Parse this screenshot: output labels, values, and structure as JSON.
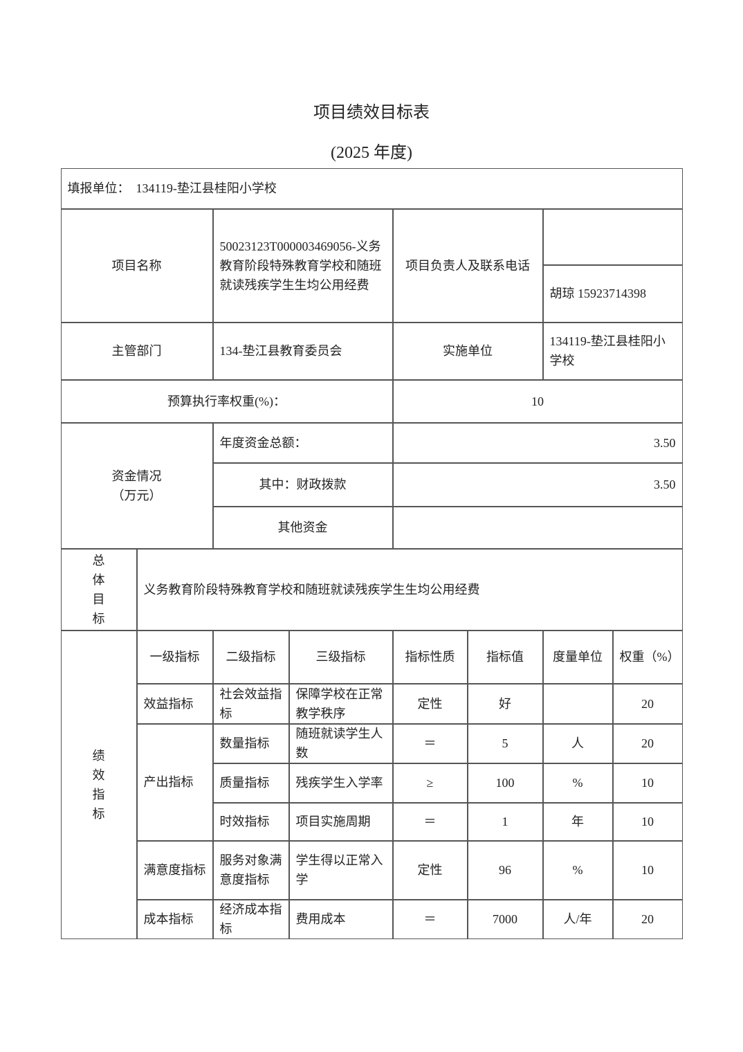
{
  "title": "项目绩效目标表",
  "subtitle": "(2025 年度)",
  "reporting_unit": "填报单位：　134119-垫江县桂阳小学校",
  "project_name_label": "项目名称",
  "project_name": "50023123T000003469056-义务教育阶段特殊教育学校和随班就读残疾学生生均公用经费",
  "contact_label": "项目负责人及联系电话",
  "contact_top": "",
  "contact": "胡琼 15923714398",
  "dept_label": "主管部门",
  "dept": "134-垫江县教育委员会",
  "impl_label": "实施单位",
  "impl": "134119-垫江县桂阳小学校",
  "budget_rate_label": "预算执行率权重(%)：",
  "budget_rate": "10",
  "funds_label": "资金情况（万元）",
  "funds": [
    {
      "label": "年度资金总额：",
      "value": "3.50"
    },
    {
      "label": "其中：财政拨款",
      "value": "3.50"
    },
    {
      "label": "其他资金",
      "value": ""
    }
  ],
  "goal_label": "总体目标",
  "goal": "义务教育阶段特殊教育学校和随班就读残疾学生生均公用经费",
  "perf_label": "绩效指标",
  "headers": [
    "一级指标",
    "二级指标",
    "三级指标",
    "指标性质",
    "指标值",
    "度量单位",
    "权重（%）"
  ],
  "level1": [
    "效益指标",
    "产出指标",
    "满意度指标",
    "成本指标"
  ],
  "rows": [
    {
      "l2": "社会效益指标",
      "l3": "保障学校在正常教学秩序",
      "nature": "定性",
      "value": "好",
      "unit": "",
      "weight": "20"
    },
    {
      "l2": "数量指标",
      "l3": "随班就读学生人数",
      "nature": "＝",
      "value": "5",
      "unit": "人",
      "weight": "20"
    },
    {
      "l2": "质量指标",
      "l3": "残疾学生入学率",
      "nature": "≥",
      "value": "100",
      "unit": "%",
      "weight": "10"
    },
    {
      "l2": "时效指标",
      "l3": "项目实施周期",
      "nature": "＝",
      "value": "1",
      "unit": "年",
      "weight": "10"
    },
    {
      "l2": "服务对象满意度指标",
      "l3": "学生得以正常入学",
      "nature": "定性",
      "value": "96",
      "unit": "%",
      "weight": "10"
    },
    {
      "l2": "经济成本指标",
      "l3": "费用成本",
      "nature": "＝",
      "value": "7000",
      "unit": "人/年",
      "weight": "20"
    }
  ]
}
